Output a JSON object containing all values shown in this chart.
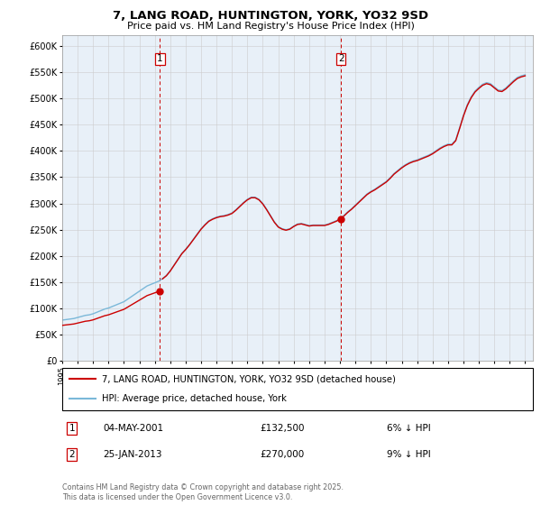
{
  "title": "7, LANG ROAD, HUNTINGTON, YORK, YO32 9SD",
  "subtitle": "Price paid vs. HM Land Registry's House Price Index (HPI)",
  "legend_line1": "7, LANG ROAD, HUNTINGTON, YORK, YO32 9SD (detached house)",
  "legend_line2": "HPI: Average price, detached house, York",
  "annotation1_date": "04-MAY-2001",
  "annotation1_price": "£132,500",
  "annotation1_hpi": "6% ↓ HPI",
  "annotation2_date": "25-JAN-2013",
  "annotation2_price": "£270,000",
  "annotation2_hpi": "9% ↓ HPI",
  "footnote": "Contains HM Land Registry data © Crown copyright and database right 2025.\nThis data is licensed under the Open Government Licence v3.0.",
  "hpi_color": "#7ab8d9",
  "price_color": "#cc0000",
  "vline_color": "#cc0000",
  "ylim": [
    0,
    620000
  ],
  "yticks": [
    0,
    50000,
    100000,
    150000,
    200000,
    250000,
    300000,
    350000,
    400000,
    450000,
    500000,
    550000,
    600000
  ],
  "hpi_x": [
    1995.0,
    1995.25,
    1995.5,
    1995.75,
    1996.0,
    1996.25,
    1996.5,
    1996.75,
    1997.0,
    1997.25,
    1997.5,
    1997.75,
    1998.0,
    1998.25,
    1998.5,
    1998.75,
    1999.0,
    1999.25,
    1999.5,
    1999.75,
    2000.0,
    2000.25,
    2000.5,
    2000.75,
    2001.0,
    2001.25,
    2001.5,
    2001.75,
    2002.0,
    2002.25,
    2002.5,
    2002.75,
    2003.0,
    2003.25,
    2003.5,
    2003.75,
    2004.0,
    2004.25,
    2004.5,
    2004.75,
    2005.0,
    2005.25,
    2005.5,
    2005.75,
    2006.0,
    2006.25,
    2006.5,
    2006.75,
    2007.0,
    2007.25,
    2007.5,
    2007.75,
    2008.0,
    2008.25,
    2008.5,
    2008.75,
    2009.0,
    2009.25,
    2009.5,
    2009.75,
    2010.0,
    2010.25,
    2010.5,
    2010.75,
    2011.0,
    2011.25,
    2011.5,
    2011.75,
    2012.0,
    2012.25,
    2012.5,
    2012.75,
    2013.0,
    2013.25,
    2013.5,
    2013.75,
    2014.0,
    2014.25,
    2014.5,
    2014.75,
    2015.0,
    2015.25,
    2015.5,
    2015.75,
    2016.0,
    2016.25,
    2016.5,
    2016.75,
    2017.0,
    2017.25,
    2017.5,
    2017.75,
    2018.0,
    2018.25,
    2018.5,
    2018.75,
    2019.0,
    2019.25,
    2019.5,
    2019.75,
    2020.0,
    2020.25,
    2020.5,
    2020.75,
    2021.0,
    2021.25,
    2021.5,
    2021.75,
    2022.0,
    2022.25,
    2022.5,
    2022.75,
    2023.0,
    2023.25,
    2023.5,
    2023.75,
    2024.0,
    2024.25,
    2024.5,
    2024.75,
    2025.0
  ],
  "hpi_y": [
    78000,
    79000,
    80000,
    81000,
    83000,
    85000,
    87000,
    88000,
    90000,
    93000,
    96000,
    99000,
    101000,
    104000,
    107000,
    110000,
    113000,
    118000,
    123000,
    128000,
    133000,
    138000,
    143000,
    146000,
    149000,
    152000,
    157000,
    163000,
    172000,
    183000,
    194000,
    205000,
    213000,
    222000,
    232000,
    242000,
    252000,
    260000,
    267000,
    271000,
    274000,
    276000,
    277000,
    279000,
    282000,
    288000,
    295000,
    302000,
    308000,
    312000,
    312000,
    308000,
    300000,
    289000,
    277000,
    265000,
    256000,
    252000,
    250000,
    252000,
    257000,
    261000,
    262000,
    260000,
    258000,
    259000,
    259000,
    259000,
    259000,
    261000,
    264000,
    267000,
    271000,
    277000,
    284000,
    290000,
    297000,
    304000,
    311000,
    318000,
    323000,
    327000,
    332000,
    337000,
    342000,
    349000,
    357000,
    363000,
    369000,
    374000,
    378000,
    381000,
    383000,
    386000,
    389000,
    392000,
    396000,
    401000,
    406000,
    410000,
    413000,
    413000,
    421000,
    444000,
    468000,
    488000,
    503000,
    514000,
    521000,
    527000,
    530000,
    528000,
    522000,
    516000,
    515000,
    520000,
    527000,
    534000,
    540000,
    543000,
    545000
  ],
  "marker1_x": 2001.33,
  "marker1_y": 132500,
  "marker2_x": 2013.07,
  "marker2_y": 270000,
  "vline_x": [
    2001.33,
    2013.07
  ],
  "xlim": [
    1995.0,
    2025.5
  ]
}
